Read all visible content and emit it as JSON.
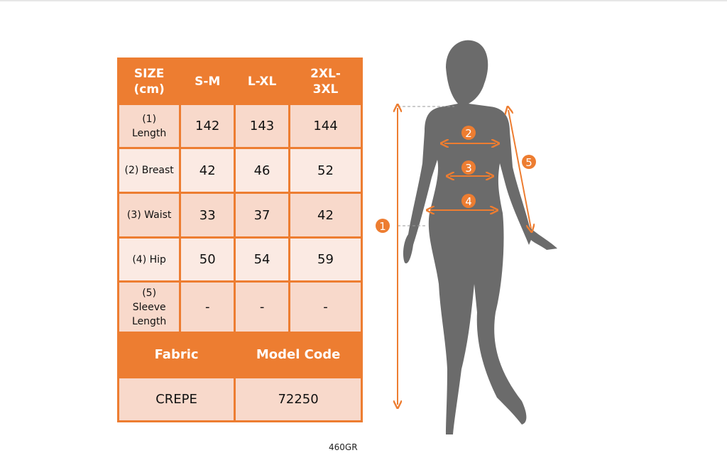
{
  "table": {
    "headers": [
      "SIZE (cm)",
      "S-M",
      "L-XL",
      "2XL-3XL"
    ],
    "rows": [
      {
        "label": "(1) Length",
        "values": [
          "142",
          "143",
          "144"
        ]
      },
      {
        "label": "(2) Breast",
        "values": [
          "42",
          "46",
          "52"
        ]
      },
      {
        "label": "(3) Waist",
        "values": [
          "33",
          "37",
          "42"
        ]
      },
      {
        "label": "(4) Hip",
        "values": [
          "50",
          "54",
          "59"
        ]
      },
      {
        "label": "(5) Sleeve Length",
        "values": [
          "-",
          "-",
          "-"
        ]
      }
    ],
    "footer_headers": [
      "Fabric",
      "Model Code"
    ],
    "footer_values": [
      "CREPE",
      "72250"
    ]
  },
  "markers": [
    "1",
    "2",
    "3",
    "4",
    "5"
  ],
  "weight_label": "460GR",
  "colors": {
    "accent": "#ED7D31",
    "cell_dark": "#F8D9CB",
    "cell_light": "#FBEAE3",
    "silhouette": "#6b6b6b"
  }
}
